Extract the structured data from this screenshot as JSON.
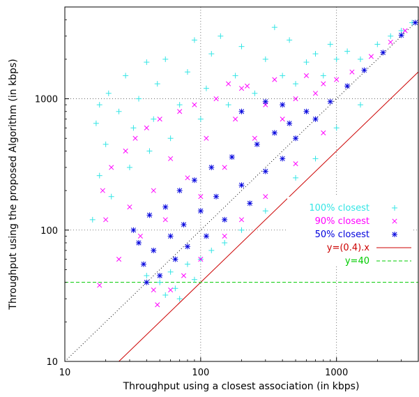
{
  "chart_data": {
    "type": "scatter",
    "title": "",
    "xlabel": "Throughput using a closest association (in kbps)",
    "ylabel": "Throughput using the proposed Algorithm (in kbps)",
    "xscale": "log",
    "yscale": "log",
    "xlim": [
      10,
      4000
    ],
    "ylim": [
      10,
      5000
    ],
    "x_ticks": [
      {
        "value": 10,
        "label": "10"
      },
      {
        "value": 100,
        "label": "100"
      },
      {
        "value": 1000,
        "label": "1000"
      }
    ],
    "y_ticks": [
      {
        "value": 10,
        "label": "10"
      },
      {
        "value": 100,
        "label": "100"
      },
      {
        "value": 1000,
        "label": "1000"
      }
    ],
    "grid": true,
    "legend_position": "right-middle",
    "series": [
      {
        "name": "100% closest",
        "marker": "plus",
        "color": "#33e5e5",
        "points": [
          [
            16,
            120
          ],
          [
            17,
            650
          ],
          [
            18,
            900
          ],
          [
            18,
            260
          ],
          [
            20,
            450
          ],
          [
            21,
            1100
          ],
          [
            22,
            180
          ],
          [
            25,
            800
          ],
          [
            28,
            1500
          ],
          [
            30,
            300
          ],
          [
            32,
            600
          ],
          [
            35,
            1000
          ],
          [
            40,
            1900
          ],
          [
            42,
            400
          ],
          [
            45,
            700
          ],
          [
            48,
            1300
          ],
          [
            55,
            2000
          ],
          [
            60,
            500
          ],
          [
            70,
            900
          ],
          [
            80,
            1600
          ],
          [
            90,
            2800
          ],
          [
            100,
            700
          ],
          [
            110,
            1200
          ],
          [
            120,
            2200
          ],
          [
            140,
            3000
          ],
          [
            160,
            900
          ],
          [
            180,
            1500
          ],
          [
            200,
            2500
          ],
          [
            250,
            1100
          ],
          [
            300,
            2000
          ],
          [
            350,
            3500
          ],
          [
            400,
            1500
          ],
          [
            450,
            2800
          ],
          [
            500,
            1300
          ],
          [
            600,
            1900
          ],
          [
            700,
            2200
          ],
          [
            800,
            1500
          ],
          [
            900,
            2600
          ],
          [
            1000,
            2000
          ],
          [
            1200,
            2300
          ],
          [
            1500,
            2000
          ],
          [
            2000,
            2600
          ],
          [
            2500,
            3000
          ],
          [
            3000,
            3300
          ],
          [
            3600,
            3800
          ],
          [
            40,
            45
          ],
          [
            50,
            40
          ],
          [
            60,
            48
          ],
          [
            80,
            55
          ],
          [
            100,
            60
          ],
          [
            120,
            70
          ],
          [
            150,
            80
          ],
          [
            200,
            100
          ],
          [
            300,
            140
          ],
          [
            500,
            250
          ],
          [
            700,
            350
          ],
          [
            1000,
            600
          ],
          [
            1500,
            900
          ],
          [
            70,
            30
          ],
          [
            55,
            32
          ],
          [
            65,
            36
          ],
          [
            90,
            42
          ]
        ]
      },
      {
        "name": "90% closest",
        "marker": "x",
        "color": "#ff00ff",
        "points": [
          [
            18,
            38
          ],
          [
            19,
            200
          ],
          [
            20,
            120
          ],
          [
            22,
            300
          ],
          [
            25,
            60
          ],
          [
            28,
            400
          ],
          [
            30,
            150
          ],
          [
            33,
            500
          ],
          [
            36,
            90
          ],
          [
            40,
            600
          ],
          [
            45,
            200
          ],
          [
            50,
            700
          ],
          [
            55,
            120
          ],
          [
            60,
            350
          ],
          [
            70,
            800
          ],
          [
            80,
            250
          ],
          [
            90,
            900
          ],
          [
            100,
            180
          ],
          [
            110,
            500
          ],
          [
            130,
            1000
          ],
          [
            150,
            300
          ],
          [
            180,
            700
          ],
          [
            200,
            1200
          ],
          [
            250,
            500
          ],
          [
            300,
            900
          ],
          [
            350,
            1400
          ],
          [
            400,
            700
          ],
          [
            500,
            1000
          ],
          [
            600,
            1500
          ],
          [
            700,
            1100
          ],
          [
            800,
            1300
          ],
          [
            1000,
            1400
          ],
          [
            1300,
            1600
          ],
          [
            1800,
            2100
          ],
          [
            2500,
            2700
          ],
          [
            3200,
            3300
          ],
          [
            48,
            27
          ],
          [
            60,
            35
          ],
          [
            75,
            45
          ],
          [
            100,
            60
          ],
          [
            150,
            90
          ],
          [
            200,
            120
          ],
          [
            300,
            180
          ],
          [
            500,
            320
          ],
          [
            800,
            550
          ],
          [
            45,
            35
          ],
          [
            160,
            1300
          ],
          [
            220,
            1250
          ]
        ]
      },
      {
        "name": "50% closest",
        "marker": "star",
        "color": "#0000dd",
        "points": [
          [
            32,
            100
          ],
          [
            35,
            80
          ],
          [
            38,
            55
          ],
          [
            40,
            40
          ],
          [
            42,
            130
          ],
          [
            45,
            70
          ],
          [
            50,
            45
          ],
          [
            55,
            150
          ],
          [
            60,
            90
          ],
          [
            65,
            60
          ],
          [
            70,
            200
          ],
          [
            75,
            110
          ],
          [
            80,
            75
          ],
          [
            90,
            240
          ],
          [
            100,
            140
          ],
          [
            110,
            90
          ],
          [
            120,
            300
          ],
          [
            130,
            180
          ],
          [
            150,
            120
          ],
          [
            170,
            360
          ],
          [
            200,
            220
          ],
          [
            230,
            160
          ],
          [
            260,
            450
          ],
          [
            300,
            280
          ],
          [
            350,
            550
          ],
          [
            400,
            350
          ],
          [
            450,
            650
          ],
          [
            500,
            500
          ],
          [
            600,
            800
          ],
          [
            700,
            700
          ],
          [
            900,
            950
          ],
          [
            1200,
            1250
          ],
          [
            1600,
            1650
          ],
          [
            2200,
            2250
          ],
          [
            3000,
            3050
          ],
          [
            3800,
            3800
          ],
          [
            300,
            950
          ],
          [
            200,
            800
          ],
          [
            400,
            900
          ]
        ]
      }
    ],
    "reference_lines": [
      {
        "name": "y=(0.4).x",
        "kind": "proportional",
        "factor": 0.4,
        "color": "#cc0000",
        "style": "solid"
      },
      {
        "name": "y=40",
        "kind": "horizontal",
        "value": 40,
        "color": "#00cc00",
        "style": "dashed"
      }
    ],
    "diagonal": {
      "kind": "proportional",
      "factor": 1,
      "color": "#000000",
      "style": "dotted"
    }
  }
}
